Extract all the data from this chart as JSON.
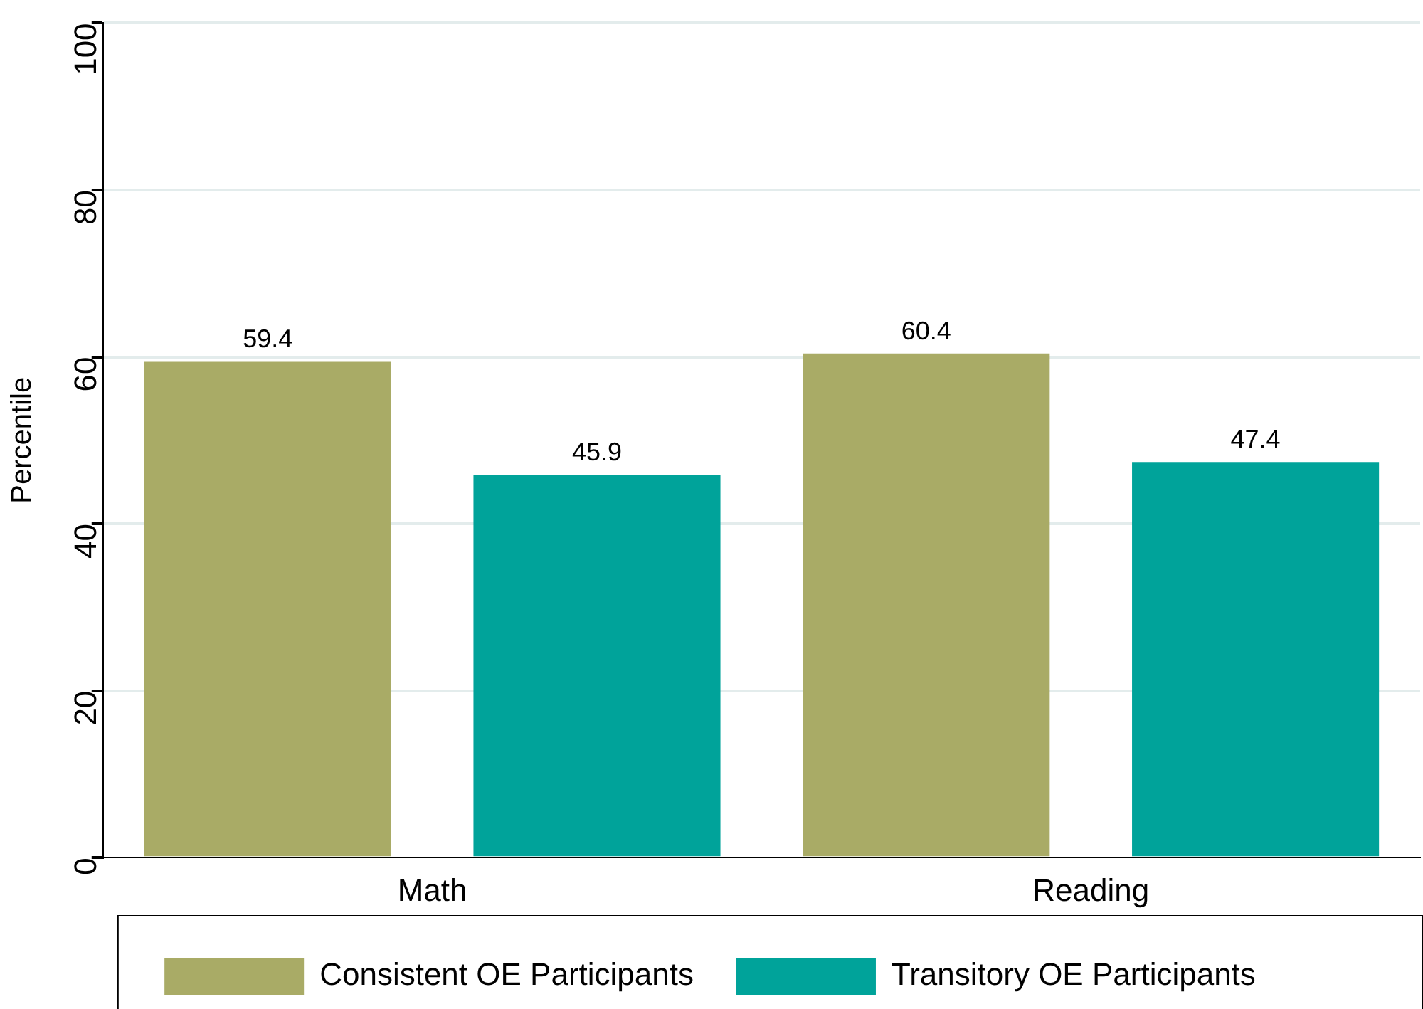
{
  "chart_data": {
    "type": "bar",
    "ylabel": "Percentile",
    "categories": [
      "Math",
      "Reading"
    ],
    "series": [
      {
        "name": "Consistent OE Participants",
        "color": "#a9ab66",
        "values": [
          59.4,
          60.4
        ]
      },
      {
        "name": "Transitory OE Participants",
        "color": "#00a39a",
        "values": [
          45.9,
          47.4
        ]
      }
    ],
    "ylim": [
      0,
      100
    ],
    "yticks": [
      0,
      20,
      40,
      60,
      80,
      100
    ],
    "grid": "y",
    "legend": "bottom",
    "data_labels": true
  }
}
